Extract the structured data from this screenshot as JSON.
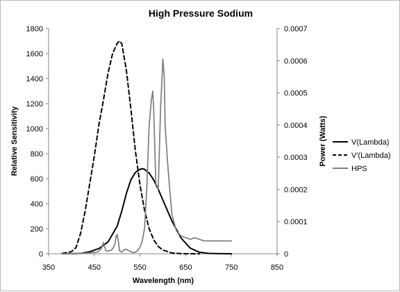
{
  "chart_data": {
    "type": "line",
    "title": "High Pressure Sodium",
    "xlabel": "Wavelength (nm)",
    "ylabel": "Relative Sensitivity",
    "y2label": "Power (Watts)",
    "xlim": [
      350,
      850
    ],
    "ylim": [
      0,
      1800
    ],
    "y2lim": [
      0,
      0.0007
    ],
    "xticks": [
      350,
      450,
      550,
      650,
      750,
      850
    ],
    "yticks": [
      0,
      200,
      400,
      600,
      800,
      1000,
      1200,
      1400,
      1600,
      1800
    ],
    "y2ticks": [
      "0",
      "0.0001",
      "0.0002",
      "0.0003",
      "0.0004",
      "0.0005",
      "0.0006",
      "0.0007"
    ],
    "grid": false,
    "legend_position": "right",
    "series": [
      {
        "name": "V(Lambda)",
        "axis": "left",
        "color": "#000000",
        "dash": "solid",
        "x": [
          380,
          400,
          420,
          440,
          460,
          480,
          500,
          510,
          520,
          530,
          540,
          550,
          555,
          560,
          570,
          580,
          590,
          600,
          620,
          640,
          660,
          680,
          700,
          720,
          750
        ],
        "y": [
          0,
          0,
          3,
          16,
          41,
          94,
          220,
          340,
          480,
          590,
          650,
          675,
          680,
          675,
          645,
          590,
          515,
          430,
          260,
          125,
          45,
          12,
          3,
          1,
          0
        ]
      },
      {
        "name": "V'(Lambda)",
        "axis": "left",
        "color": "#000000",
        "dash": "dashed",
        "x": [
          380,
          390,
          400,
          410,
          420,
          430,
          440,
          450,
          460,
          470,
          480,
          490,
          500,
          505,
          510,
          520,
          530,
          540,
          550,
          560,
          570,
          580,
          590,
          600,
          620,
          640,
          660,
          680
        ],
        "y": [
          3,
          10,
          16,
          50,
          165,
          340,
          560,
          780,
          1030,
          1230,
          1440,
          1600,
          1680,
          1700,
          1680,
          1470,
          1160,
          820,
          550,
          345,
          200,
          113,
          58,
          30,
          6,
          1,
          0,
          0
        ]
      },
      {
        "name": "HPS",
        "axis": "right",
        "color": "#7f7f7f",
        "dash": "solid",
        "x": [
          380,
          400,
          420,
          440,
          455,
          460,
          465,
          470,
          475,
          480,
          485,
          490,
          495,
          498,
          500,
          503,
          505,
          510,
          515,
          520,
          525,
          530,
          535,
          540,
          545,
          550,
          555,
          560,
          565,
          570,
          575,
          578,
          580,
          583,
          585,
          590,
          595,
          600,
          603,
          605,
          610,
          615,
          620,
          630,
          640,
          650,
          660,
          670,
          680,
          690,
          700,
          720,
          750
        ],
        "y": [
          0,
          0,
          1e-06,
          3e-06,
          5e-06,
          8e-06,
          1.5e-05,
          3.5e-05,
          1e-05,
          8e-06,
          1e-05,
          1.5e-05,
          3e-05,
          5.5e-05,
          6e-05,
          3.5e-05,
          1e-05,
          5e-06,
          1.2e-05,
          1.4e-05,
          1e-05,
          6e-06,
          4e-06,
          5e-06,
          1e-05,
          2e-05,
          4e-05,
          8e-05,
          0.00021,
          0.0004,
          0.00048,
          0.000505,
          0.00045,
          0.0003,
          0.00021,
          0.0002,
          0.00045,
          0.000605,
          0.00055,
          0.0004,
          0.00029,
          0.0002,
          0.00012,
          7e-05,
          5.5e-05,
          5e-05,
          4.5e-05,
          5e-05,
          4.5e-05,
          4e-05,
          4e-05,
          4e-05,
          4e-05
        ]
      }
    ]
  }
}
